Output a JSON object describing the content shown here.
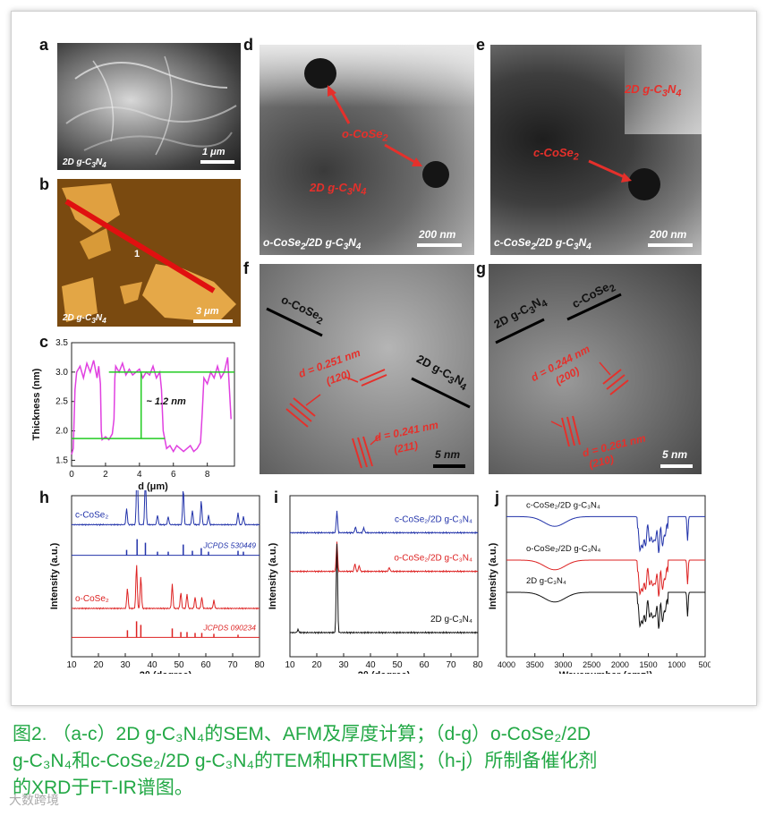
{
  "panel_labels": {
    "a": "a",
    "b": "b",
    "c": "c",
    "d": "d",
    "e": "e",
    "f": "f",
    "g": "g",
    "h": "h",
    "i": "i",
    "j": "j"
  },
  "panel_a": {
    "sample": "2D g-C3N4",
    "scale": "1 μm"
  },
  "panel_b": {
    "sample": "2D g-C3N4",
    "scale": "3 μm",
    "line_marker": "1"
  },
  "panel_d": {
    "sample": "o-CoSe2/2D g-C3N4",
    "particle": "o-CoSe2",
    "support": "2D g-C3N4",
    "scale": "200 nm"
  },
  "panel_e": {
    "sample": "c-CoSe2/2D g-C3N4",
    "particle": "c-CoSe2",
    "support": "2D g-C3N4",
    "scale": "200 nm"
  },
  "panel_f": {
    "phase1": "o-CoSe2",
    "phase2": "2D g-C3N4",
    "d1": "d = 0.251 nm",
    "hkl1": "(120)",
    "d2": "d = 0.241 nm",
    "hkl2": "(211)",
    "scale": "5 nm"
  },
  "panel_g": {
    "phase1": "2D g-C3N4",
    "phase2": "c-CoSe2",
    "d1": "d = 0.244 nm",
    "hkl1": "(200)",
    "d2": "d = 0.261 nm",
    "hkl2": "(210)",
    "scale": "5 nm"
  },
  "chart_data": [
    {
      "panel": "c",
      "type": "line",
      "xlabel": "d (μm)",
      "ylabel": "Thickness (nm)",
      "xlim": [
        0,
        9.6
      ],
      "ylim": [
        1.4,
        3.5
      ],
      "xticks": [
        0,
        2,
        4,
        6,
        8
      ],
      "yticks": [
        1.5,
        2.0,
        2.5,
        3.0,
        3.5
      ],
      "annotation": "~ 1.2 nm",
      "guide_levels": [
        3.0,
        1.87
      ],
      "series": [
        {
          "color": "#e040e0",
          "x": [
            0,
            0.1,
            0.2,
            0.3,
            0.5,
            0.7,
            0.9,
            1.1,
            1.3,
            1.5,
            1.6,
            1.7,
            1.75,
            1.8,
            2.0,
            2.2,
            2.4,
            2.5,
            2.55,
            2.6,
            2.8,
            3.0,
            3.2,
            3.4,
            3.6,
            3.8,
            4.0,
            4.2,
            4.4,
            4.6,
            4.8,
            5.0,
            5.2,
            5.3,
            5.4,
            5.5,
            5.6,
            5.8,
            6.0,
            6.2,
            6.4,
            6.6,
            6.8,
            7.0,
            7.2,
            7.4,
            7.6,
            7.7,
            7.8,
            8.0,
            8.2,
            8.4,
            8.6,
            8.8,
            9.0,
            9.2,
            9.4
          ],
          "y": [
            1.6,
            1.7,
            2.7,
            3.0,
            3.1,
            2.9,
            3.15,
            3.0,
            3.2,
            2.9,
            3.1,
            2.8,
            2.0,
            1.85,
            1.9,
            1.85,
            1.95,
            2.2,
            2.9,
            3.1,
            3.0,
            3.15,
            2.95,
            3.05,
            2.95,
            3.0,
            3.05,
            2.9,
            3.0,
            2.95,
            3.1,
            2.9,
            3.0,
            2.7,
            2.0,
            1.85,
            1.7,
            1.75,
            1.65,
            1.75,
            1.7,
            1.65,
            1.7,
            1.75,
            1.65,
            1.7,
            1.8,
            2.3,
            2.9,
            2.8,
            3.0,
            2.9,
            3.1,
            2.9,
            3.0,
            3.25,
            2.2
          ]
        }
      ]
    },
    {
      "panel": "h",
      "type": "line",
      "xlabel": "2θ (degree)",
      "ylabel": "Intensity (a.u.)",
      "xlim": [
        10,
        80
      ],
      "xticks": [
        10,
        20,
        30,
        40,
        50,
        60,
        70,
        80
      ],
      "series": [
        {
          "name": "c-CoSe2",
          "color": "#2233aa",
          "peaks": [
            [
              30.5,
              20
            ],
            [
              34.4,
              85
            ],
            [
              37.5,
              60
            ],
            [
              42,
              12
            ],
            [
              46,
              10
            ],
            [
              51.6,
              45
            ],
            [
              55,
              18
            ],
            [
              58.3,
              30
            ],
            [
              61,
              12
            ],
            [
              72,
              15
            ],
            [
              74,
              10
            ]
          ],
          "baseline": 0.82
        },
        {
          "name": "o-CoSe2",
          "color": "#dd2222",
          "peaks": [
            [
              30.8,
              25
            ],
            [
              34.2,
              55
            ],
            [
              35.8,
              40
            ],
            [
              47.5,
              30
            ],
            [
              50.7,
              20
            ],
            [
              53,
              18
            ],
            [
              56,
              14
            ],
            [
              58.5,
              14
            ],
            [
              63,
              10
            ]
          ],
          "baseline": 0.3
        }
      ],
      "reference_labels": [
        "JCPDS 530449",
        "JCPDS 090234"
      ],
      "reference_lines": [
        {
          "color": "#2233aa",
          "x": [
            30.5,
            34.4,
            37.5,
            42,
            46,
            51.6,
            55,
            58.3,
            61,
            72,
            74
          ],
          "h": [
            6,
            18,
            14,
            4,
            4,
            12,
            5,
            8,
            4,
            5,
            4
          ]
        },
        {
          "color": "#dd2222",
          "x": [
            30.8,
            34.2,
            35.8,
            47.5,
            50.7,
            53,
            56,
            58.5,
            63,
            72
          ],
          "h": [
            8,
            18,
            14,
            10,
            6,
            6,
            5,
            5,
            4,
            3
          ]
        }
      ]
    },
    {
      "panel": "i",
      "type": "line",
      "xlabel": "2θ (degree)",
      "ylabel": "Intensity (a.u.)",
      "xlim": [
        10,
        80
      ],
      "xticks": [
        10,
        20,
        30,
        40,
        50,
        60,
        70,
        80
      ],
      "series": [
        {
          "name": "c-CoSe2/2D g-C3N4",
          "color": "#2233aa",
          "peaks": [
            [
              27.5,
              22
            ],
            [
              34.4,
              6
            ],
            [
              37.5,
              5
            ]
          ],
          "baseline": 0.77
        },
        {
          "name": "o-CoSe2/2D g-C3N4",
          "color": "#dd2222",
          "peaks": [
            [
              27.5,
              30
            ],
            [
              34.2,
              8
            ],
            [
              35.8,
              6
            ],
            [
              47,
              4
            ]
          ],
          "baseline": 0.53
        },
        {
          "name": "2D g-C3N4",
          "color": "#111111",
          "peaks": [
            [
              13,
              3
            ],
            [
              27.5,
              90
            ]
          ],
          "baseline": 0.15
        }
      ]
    },
    {
      "panel": "j",
      "type": "line",
      "xlabel": "Wavenumber (cm⁻¹)",
      "ylabel": "Intensity (a.u.)",
      "xlim": [
        4000,
        500
      ],
      "xticks": [
        4000,
        3500,
        3000,
        2500,
        2000,
        1500,
        1000,
        500
      ],
      "series": [
        {
          "name": "c-CoSe2/2D g-C3N4",
          "color": "#2233aa",
          "baseline": 0.87
        },
        {
          "name": "o-CoSe2/2D g-C3N4",
          "color": "#dd2222",
          "baseline": 0.6
        },
        {
          "name": "2D g-C3N4",
          "color": "#111111",
          "baseline": 0.4
        }
      ]
    }
  ],
  "caption": {
    "line1": "图2. （a-c）2D g-C₃N₄的SEM、AFM及厚度计算；（d-g）o-CoSe₂/2D",
    "line2": "g-C₃N₄和c-CoSe₂/2D g-C₃N₄的TEM和HRTEM图；（h-j）所制备催化剂",
    "line3": "的XRD于FT-IR谱图。"
  },
  "watermark": "大数跨境"
}
